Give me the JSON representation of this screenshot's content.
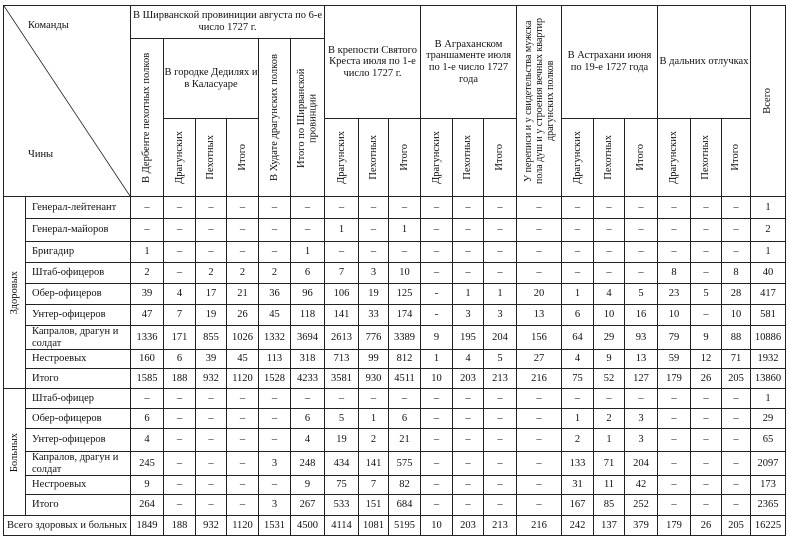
{
  "header": {
    "corner_top": "Команды",
    "corner_bottom": "Чины",
    "shirvan": "В Ширванской провиниции августа по 6-е число 1727 г.",
    "derbent": "В Дербенте пехотных полков",
    "dedilyah": "В городке Дедилях и в Каласуаре",
    "khudat": "В Худате драгунских полков",
    "itogo_shirvan": "Итого по Ширванской провинции",
    "krest": "В крепости Святого Креста июля по 1-е число 1727 г.",
    "agrakhan": "В Аграханском траншаменте июля по 1-е число 1727 года",
    "perepis": "У переписи и у свидетельства мужска пола душ и у строения вечных квартир драгунских полков",
    "astrakhan": "В Астрахани июня по 19-е 1727 года",
    "otluchki": "В дальних отлучках",
    "vsego": "Всего",
    "dragun": "Драгунских",
    "pekhot": "Пехотных",
    "itogo": "Итого"
  },
  "groups": [
    {
      "label": "Здоровых",
      "rows": [
        {
          "rank": "Генерал-лейтенант",
          "values": [
            "–",
            "–",
            "–",
            "–",
            "–",
            "–",
            "–",
            "–",
            "–",
            "–",
            "–",
            "–",
            "–",
            "–",
            "–",
            "–",
            "–",
            "–",
            "–",
            "1"
          ]
        },
        {
          "rank": "Генерал-майоров",
          "values": [
            "–",
            "–",
            "–",
            "–",
            "–",
            "–",
            "1",
            "–",
            "1",
            "–",
            "–",
            "–",
            "–",
            "–",
            "–",
            "–",
            "–",
            "–",
            "–",
            "2"
          ]
        },
        {
          "rank": "Бригадир",
          "values": [
            "1",
            "–",
            "–",
            "–",
            "–",
            "1",
            "–",
            "–",
            "–",
            "–",
            "–",
            "–",
            "–",
            "–",
            "–",
            "–",
            "–",
            "–",
            "–",
            "1"
          ]
        },
        {
          "rank": "Штаб-офицеров",
          "values": [
            "2",
            "–",
            "2",
            "2",
            "2",
            "6",
            "7",
            "3",
            "10",
            "–",
            "–",
            "–",
            "–",
            "–",
            "–",
            "–",
            "8",
            "–",
            "8",
            "40"
          ]
        },
        {
          "rank": "Обер-офицеров",
          "values": [
            "39",
            "4",
            "17",
            "21",
            "36",
            "96",
            "106",
            "19",
            "125",
            "-",
            "1",
            "1",
            "20",
            "1",
            "4",
            "5",
            "23",
            "5",
            "28",
            "417"
          ]
        },
        {
          "rank": "Унтер-офицеров",
          "values": [
            "47",
            "7",
            "19",
            "26",
            "45",
            "118",
            "141",
            "33",
            "174",
            "-",
            "3",
            "3",
            "13",
            "6",
            "10",
            "16",
            "10",
            "–",
            "10",
            "581"
          ]
        },
        {
          "rank": "Капралов, драгун и солдат",
          "values": [
            "1336",
            "171",
            "855",
            "1026",
            "1332",
            "3694",
            "2613",
            "776",
            "3389",
            "9",
            "195",
            "204",
            "156",
            "64",
            "29",
            "93",
            "79",
            "9",
            "88",
            "10886"
          ]
        },
        {
          "rank": "Нестроевых",
          "values": [
            "160",
            "6",
            "39",
            "45",
            "113",
            "318",
            "713",
            "99",
            "812",
            "1",
            "4",
            "5",
            "27",
            "4",
            "9",
            "13",
            "59",
            "12",
            "71",
            "1932"
          ]
        },
        {
          "rank": "Итого",
          "values": [
            "1585",
            "188",
            "932",
            "1120",
            "1528",
            "4233",
            "3581",
            "930",
            "4511",
            "10",
            "203",
            "213",
            "216",
            "75",
            "52",
            "127",
            "179",
            "26",
            "205",
            "13860"
          ]
        }
      ]
    },
    {
      "label": "Больных",
      "rows": [
        {
          "rank": "Штаб-офицер",
          "values": [
            "–",
            "–",
            "–",
            "–",
            "–",
            "–",
            "–",
            "–",
            "–",
            "–",
            "–",
            "–",
            "–",
            "–",
            "–",
            "–",
            "–",
            "–",
            "–",
            "1"
          ]
        },
        {
          "rank": "Обер-офицеров",
          "values": [
            "6",
            "–",
            "–",
            "–",
            "–",
            "6",
            "5",
            "1",
            "6",
            "–",
            "–",
            "–",
            "–",
            "1",
            "2",
            "3",
            "–",
            "–",
            "–",
            "29"
          ]
        },
        {
          "rank": "Унтер-офицеров",
          "values": [
            "4",
            "–",
            "–",
            "–",
            "–",
            "4",
            "19",
            "2",
            "21",
            "–",
            "–",
            "–",
            "–",
            "2",
            "1",
            "3",
            "–",
            "–",
            "–",
            "65"
          ]
        },
        {
          "rank": "Капралов, драгун и солдат",
          "values": [
            "245",
            "–",
            "–",
            "–",
            "3",
            "248",
            "434",
            "141",
            "575",
            "–",
            "–",
            "–",
            "–",
            "133",
            "71",
            "204",
            "–",
            "–",
            "–",
            "2097"
          ]
        },
        {
          "rank": "Нестроевых",
          "values": [
            "9",
            "–",
            "–",
            "–",
            "–",
            "9",
            "75",
            "7",
            "82",
            "–",
            "–",
            "–",
            "–",
            "31",
            "11",
            "42",
            "–",
            "–",
            "–",
            "173"
          ]
        },
        {
          "rank": "Итого",
          "values": [
            "264",
            "–",
            "–",
            "–",
            "3",
            "267",
            "533",
            "151",
            "684",
            "–",
            "–",
            "–",
            "–",
            "167",
            "85",
            "252",
            "–",
            "–",
            "–",
            "2365"
          ]
        }
      ]
    }
  ],
  "total": {
    "label": "Всего здоровых и больных",
    "values": [
      "1849",
      "188",
      "932",
      "1120",
      "1531",
      "4500",
      "4114",
      "1081",
      "5195",
      "10",
      "203",
      "213",
      "216",
      "242",
      "137",
      "379",
      "179",
      "26",
      "205",
      "16225"
    ]
  }
}
